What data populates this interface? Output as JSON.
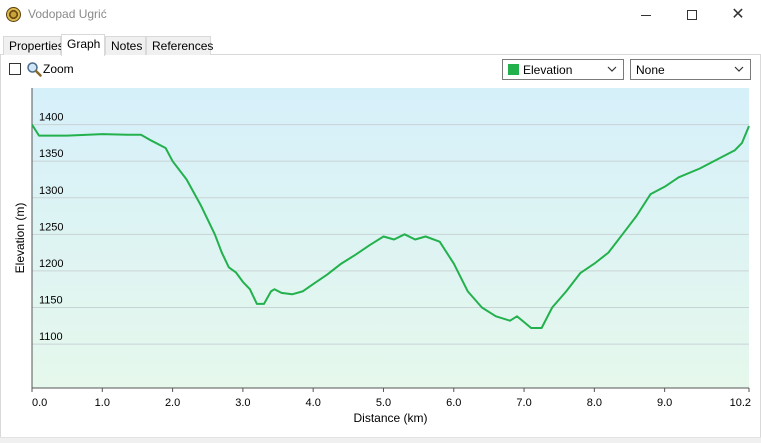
{
  "window": {
    "title": "Vodopad Ugrić",
    "icon": "app-logo-icon",
    "controls": {
      "minimize": "minimize-icon",
      "maximize": "maximize-icon",
      "close": "close-icon"
    }
  },
  "tabs": [
    {
      "label": "Properties",
      "active": false
    },
    {
      "label": "Graph",
      "active": true
    },
    {
      "label": "Notes",
      "active": false
    },
    {
      "label": "References",
      "active": false
    }
  ],
  "toolbar": {
    "zoom_label": "Zoom",
    "zoom_checked": false,
    "series_select": {
      "value": "Elevation",
      "swatch_color": "#22b14c"
    },
    "second_select": {
      "value": "None"
    }
  },
  "colors": {
    "line": "#22b14c",
    "bg_top": "#d6f0fa",
    "bg_bottom": "#e6f8ec",
    "grid": "#c9d3d6"
  },
  "chart_data": {
    "type": "line",
    "xlabel": "Distance  (km)",
    "ylabel": "Elevation (m)",
    "xlim": [
      0,
      10.2
    ],
    "ylim": [
      1040,
      1450
    ],
    "x_ticks": [
      "0.0",
      "1.0",
      "2.0",
      "3.0",
      "4.0",
      "5.0",
      "6.0",
      "7.0",
      "8.0",
      "9.0",
      "10.2"
    ],
    "x_tick_values": [
      0,
      1,
      2,
      3,
      4,
      5,
      6,
      7,
      8,
      9,
      10.2
    ],
    "y_ticks": [
      "1100",
      "1150",
      "1200",
      "1250",
      "1300",
      "1350",
      "1400"
    ],
    "y_tick_values": [
      1100,
      1150,
      1200,
      1250,
      1300,
      1350,
      1400
    ],
    "grid": true,
    "series": [
      {
        "color": "#22b14c",
        "x": [
          0,
          0.1,
          0.5,
          1.0,
          1.4,
          1.55,
          1.7,
          1.9,
          2.0,
          2.2,
          2.4,
          2.6,
          2.7,
          2.8,
          2.9,
          3.0,
          3.1,
          3.2,
          3.3,
          3.4,
          3.45,
          3.55,
          3.7,
          3.85,
          4.0,
          4.2,
          4.4,
          4.6,
          4.8,
          5.0,
          5.15,
          5.3,
          5.45,
          5.6,
          5.8,
          6.0,
          6.2,
          6.4,
          6.6,
          6.8,
          6.9,
          7.0,
          7.1,
          7.25,
          7.4,
          7.6,
          7.8,
          8.0,
          8.2,
          8.4,
          8.6,
          8.8,
          9.0,
          9.2,
          9.5,
          9.8,
          10.0,
          10.1,
          10.2
        ],
        "y": [
          1400,
          1385,
          1385,
          1387,
          1386,
          1386,
          1378,
          1368,
          1350,
          1325,
          1290,
          1250,
          1225,
          1205,
          1198,
          1185,
          1175,
          1155,
          1155,
          1172,
          1175,
          1170,
          1168,
          1172,
          1182,
          1195,
          1210,
          1222,
          1235,
          1247,
          1243,
          1250,
          1243,
          1247,
          1240,
          1210,
          1172,
          1150,
          1138,
          1132,
          1138,
          1130,
          1122,
          1122,
          1150,
          1172,
          1197,
          1210,
          1225,
          1250,
          1275,
          1305,
          1315,
          1328,
          1340,
          1355,
          1365,
          1375,
          1398
        ]
      }
    ]
  }
}
